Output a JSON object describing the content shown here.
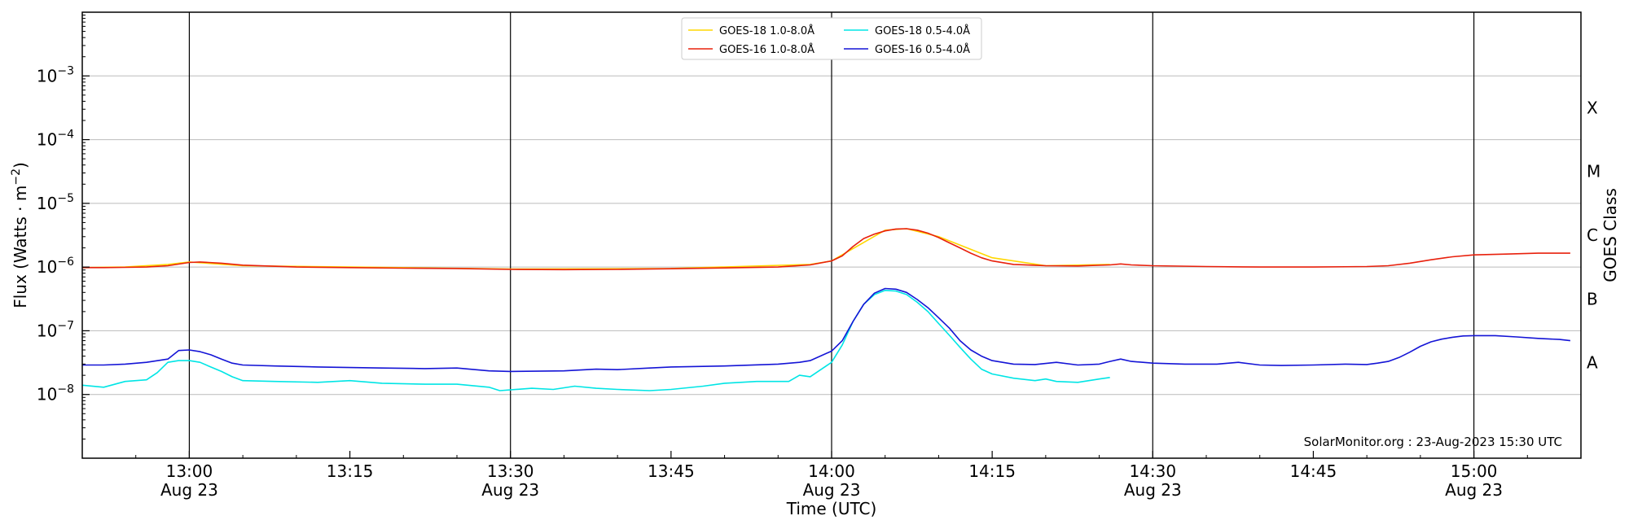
{
  "chart_data": {
    "type": "line",
    "title": "",
    "xlabel": "Time (UTC)",
    "ylabel": "Flux (Watts · m⁻²)",
    "ylabel_base": "Flux (Watts · m",
    "ylabel_sup": "−2",
    "ylabel_end": ")",
    "right_label": "GOES Class",
    "y_scale": "log",
    "ylim": [
      1e-09,
      0.01
    ],
    "y_ticks": [
      {
        "value": 1e-08,
        "base": "10",
        "exp": "−8"
      },
      {
        "value": 1e-07,
        "base": "10",
        "exp": "−7"
      },
      {
        "value": 1e-06,
        "base": "10",
        "exp": "−6"
      },
      {
        "value": 1e-05,
        "base": "10",
        "exp": "−5"
      },
      {
        "value": 0.0001,
        "base": "10",
        "exp": "−4"
      },
      {
        "value": 0.001,
        "base": "10",
        "exp": "−3"
      }
    ],
    "xlim": [
      "12:50",
      "15:10"
    ],
    "x_ticks": [
      {
        "time": "13:00",
        "label": "13:00",
        "date": "Aug 23"
      },
      {
        "time": "13:15",
        "label": "13:15",
        "date": ""
      },
      {
        "time": "13:30",
        "label": "13:30",
        "date": "Aug 23"
      },
      {
        "time": "13:45",
        "label": "13:45",
        "date": ""
      },
      {
        "time": "14:00",
        "label": "14:00",
        "date": "Aug 23"
      },
      {
        "time": "14:15",
        "label": "14:15",
        "date": ""
      },
      {
        "time": "14:30",
        "label": "14:30",
        "date": "Aug 23"
      },
      {
        "time": "14:45",
        "label": "14:45",
        "date": ""
      },
      {
        "time": "15:00",
        "label": "15:00",
        "date": "Aug 23"
      }
    ],
    "vertical_lines": [
      "13:00",
      "13:30",
      "14:00",
      "14:30",
      "15:00"
    ],
    "goes_classes": [
      {
        "label": "A",
        "value": 3.16e-08
      },
      {
        "label": "B",
        "value": 3.16e-07
      },
      {
        "label": "C",
        "value": 3.16e-06
      },
      {
        "label": "M",
        "value": 3.16e-05
      },
      {
        "label": "X",
        "value": 0.000316
      }
    ],
    "grid": true,
    "legend_position": "top-center",
    "credit": "SolarMonitor.org : 23-Aug-2023 15:30 UTC",
    "series": [
      {
        "name": "GOES-18 1.0-8.0Å",
        "color": "#ffd700",
        "points": [
          [
            "12:50",
            9.8e-07
          ],
          [
            "12:54",
            1e-06
          ],
          [
            "12:58",
            1.1e-06
          ],
          [
            "13:00",
            1.2e-06
          ],
          [
            "13:05",
            1.05e-06
          ],
          [
            "13:15",
            1e-06
          ],
          [
            "13:30",
            9.3e-07
          ],
          [
            "13:45",
            9.5e-07
          ],
          [
            "13:58",
            1.1e-06
          ],
          [
            "14:00",
            1.25e-06
          ],
          [
            "14:05",
            3.8e-06
          ],
          [
            "14:07",
            4e-06
          ],
          [
            "14:10",
            3e-06
          ],
          [
            "14:15",
            1.4e-06
          ],
          [
            "14:20",
            1.05e-06
          ],
          [
            "14:26",
            1.1e-06
          ]
        ]
      },
      {
        "name": "GOES-16 1.0-8.0Å",
        "color": "#e8200c",
        "points": [
          [
            "12:50",
            9.8e-07
          ],
          [
            "12:52",
            9.8e-07
          ],
          [
            "12:54",
            9.9e-07
          ],
          [
            "12:56",
            1e-06
          ],
          [
            "12:58",
            1.05e-06
          ],
          [
            "13:00",
            1.18e-06
          ],
          [
            "13:01",
            1.2e-06
          ],
          [
            "13:03",
            1.15e-06
          ],
          [
            "13:05",
            1.07e-06
          ],
          [
            "13:10",
            1e-06
          ],
          [
            "13:15",
            9.8e-07
          ],
          [
            "13:20",
            9.6e-07
          ],
          [
            "13:25",
            9.5e-07
          ],
          [
            "13:30",
            9.2e-07
          ],
          [
            "13:35",
            9.1e-07
          ],
          [
            "13:40",
            9.2e-07
          ],
          [
            "13:45",
            9.4e-07
          ],
          [
            "13:50",
            9.7e-07
          ],
          [
            "13:55",
            1e-06
          ],
          [
            "13:58",
            1.08e-06
          ],
          [
            "14:00",
            1.25e-06
          ],
          [
            "14:01",
            1.5e-06
          ],
          [
            "14:02",
            2.1e-06
          ],
          [
            "14:03",
            2.8e-06
          ],
          [
            "14:04",
            3.3e-06
          ],
          [
            "14:05",
            3.7e-06
          ],
          [
            "14:06",
            3.95e-06
          ],
          [
            "14:07",
            4e-06
          ],
          [
            "14:08",
            3.8e-06
          ],
          [
            "14:09",
            3.4e-06
          ],
          [
            "14:10",
            2.9e-06
          ],
          [
            "14:11",
            2.4e-06
          ],
          [
            "14:12",
            2e-06
          ],
          [
            "14:13",
            1.65e-06
          ],
          [
            "14:14",
            1.4e-06
          ],
          [
            "14:15",
            1.25e-06
          ],
          [
            "14:17",
            1.1e-06
          ],
          [
            "14:20",
            1.05e-06
          ],
          [
            "14:23",
            1.04e-06
          ],
          [
            "14:26",
            1.08e-06
          ],
          [
            "14:27",
            1.12e-06
          ],
          [
            "14:28",
            1.08e-06
          ],
          [
            "14:30",
            1.05e-06
          ],
          [
            "14:35",
            1.02e-06
          ],
          [
            "14:40",
            1e-06
          ],
          [
            "14:45",
            1e-06
          ],
          [
            "14:50",
            1.02e-06
          ],
          [
            "14:52",
            1.05e-06
          ],
          [
            "14:54",
            1.15e-06
          ],
          [
            "14:56",
            1.3e-06
          ],
          [
            "14:58",
            1.45e-06
          ],
          [
            "15:00",
            1.55e-06
          ],
          [
            "15:03",
            1.6e-06
          ],
          [
            "15:06",
            1.65e-06
          ],
          [
            "15:09",
            1.65e-06
          ]
        ]
      },
      {
        "name": "GOES-18 0.5-4.0Å",
        "color": "#00e5e5",
        "points": [
          [
            "12:50",
            1.4e-08
          ],
          [
            "12:52",
            1.3e-08
          ],
          [
            "12:54",
            1.6e-08
          ],
          [
            "12:56",
            1.7e-08
          ],
          [
            "12:57",
            2.2e-08
          ],
          [
            "12:58",
            3.2e-08
          ],
          [
            "12:59",
            3.4e-08
          ],
          [
            "13:00",
            3.4e-08
          ],
          [
            "13:01",
            3.2e-08
          ],
          [
            "13:02",
            2.7e-08
          ],
          [
            "13:03",
            2.3e-08
          ],
          [
            "13:04",
            1.9e-08
          ],
          [
            "13:05",
            1.65e-08
          ],
          [
            "13:08",
            1.6e-08
          ],
          [
            "13:12",
            1.55e-08
          ],
          [
            "13:15",
            1.65e-08
          ],
          [
            "13:18",
            1.5e-08
          ],
          [
            "13:22",
            1.45e-08
          ],
          [
            "13:25",
            1.45e-08
          ],
          [
            "13:28",
            1.3e-08
          ],
          [
            "13:29",
            1.15e-08
          ],
          [
            "13:32",
            1.25e-08
          ],
          [
            "13:34",
            1.2e-08
          ],
          [
            "13:36",
            1.35e-08
          ],
          [
            "13:38",
            1.25e-08
          ],
          [
            "13:40",
            1.2e-08
          ],
          [
            "13:43",
            1.15e-08
          ],
          [
            "13:45",
            1.2e-08
          ],
          [
            "13:48",
            1.35e-08
          ],
          [
            "13:50",
            1.5e-08
          ],
          [
            "13:53",
            1.6e-08
          ],
          [
            "13:56",
            1.6e-08
          ],
          [
            "13:57",
            2e-08
          ],
          [
            "13:58",
            1.9e-08
          ],
          [
            "14:00",
            3.2e-08
          ],
          [
            "14:01",
            6e-08
          ],
          [
            "14:02",
            1.4e-07
          ],
          [
            "14:03",
            2.6e-07
          ],
          [
            "14:04",
            3.7e-07
          ],
          [
            "14:05",
            4.3e-07
          ],
          [
            "14:06",
            4.2e-07
          ],
          [
            "14:07",
            3.7e-07
          ],
          [
            "14:08",
            2.8e-07
          ],
          [
            "14:09",
            2e-07
          ],
          [
            "14:10",
            1.3e-07
          ],
          [
            "14:11",
            8.5e-08
          ],
          [
            "14:12",
            5.5e-08
          ],
          [
            "14:13",
            3.6e-08
          ],
          [
            "14:14",
            2.5e-08
          ],
          [
            "14:15",
            2.1e-08
          ],
          [
            "14:17",
            1.8e-08
          ],
          [
            "14:19",
            1.65e-08
          ],
          [
            "14:20",
            1.75e-08
          ],
          [
            "14:21",
            1.6e-08
          ],
          [
            "14:23",
            1.55e-08
          ],
          [
            "14:25",
            1.75e-08
          ],
          [
            "14:26",
            1.85e-08
          ]
        ]
      },
      {
        "name": "GOES-16 0.5-4.0Å",
        "color": "#1414d6",
        "points": [
          [
            "12:50",
            2.9e-08
          ],
          [
            "12:52",
            2.9e-08
          ],
          [
            "12:54",
            3e-08
          ],
          [
            "12:56",
            3.2e-08
          ],
          [
            "12:58",
            3.6e-08
          ],
          [
            "12:59",
            4.9e-08
          ],
          [
            "13:00",
            5e-08
          ],
          [
            "13:01",
            4.7e-08
          ],
          [
            "13:02",
            4.2e-08
          ],
          [
            "13:03",
            3.6e-08
          ],
          [
            "13:04",
            3.1e-08
          ],
          [
            "13:05",
            2.9e-08
          ],
          [
            "13:08",
            2.8e-08
          ],
          [
            "13:12",
            2.7e-08
          ],
          [
            "13:15",
            2.65e-08
          ],
          [
            "13:18",
            2.6e-08
          ],
          [
            "13:22",
            2.55e-08
          ],
          [
            "13:25",
            2.6e-08
          ],
          [
            "13:28",
            2.35e-08
          ],
          [
            "13:30",
            2.3e-08
          ],
          [
            "13:35",
            2.35e-08
          ],
          [
            "13:38",
            2.5e-08
          ],
          [
            "13:40",
            2.45e-08
          ],
          [
            "13:43",
            2.6e-08
          ],
          [
            "13:45",
            2.7e-08
          ],
          [
            "13:50",
            2.8e-08
          ],
          [
            "13:55",
            3e-08
          ],
          [
            "13:57",
            3.2e-08
          ],
          [
            "13:58",
            3.4e-08
          ],
          [
            "14:00",
            4.8e-08
          ],
          [
            "14:01",
            7e-08
          ],
          [
            "14:02",
            1.4e-07
          ],
          [
            "14:03",
            2.6e-07
          ],
          [
            "14:04",
            3.9e-07
          ],
          [
            "14:05",
            4.6e-07
          ],
          [
            "14:06",
            4.5e-07
          ],
          [
            "14:07",
            4e-07
          ],
          [
            "14:08",
            3.1e-07
          ],
          [
            "14:09",
            2.3e-07
          ],
          [
            "14:10",
            1.6e-07
          ],
          [
            "14:11",
            1.1e-07
          ],
          [
            "14:12",
            7e-08
          ],
          [
            "14:13",
            5e-08
          ],
          [
            "14:14",
            4e-08
          ],
          [
            "14:15",
            3.4e-08
          ],
          [
            "14:17",
            3e-08
          ],
          [
            "14:19",
            2.95e-08
          ],
          [
            "14:21",
            3.2e-08
          ],
          [
            "14:23",
            2.9e-08
          ],
          [
            "14:25",
            3e-08
          ],
          [
            "14:26",
            3.3e-08
          ],
          [
            "14:27",
            3.6e-08
          ],
          [
            "14:28",
            3.3e-08
          ],
          [
            "14:30",
            3.1e-08
          ],
          [
            "14:33",
            3e-08
          ],
          [
            "14:36",
            3e-08
          ],
          [
            "14:38",
            3.2e-08
          ],
          [
            "14:40",
            2.9e-08
          ],
          [
            "14:42",
            2.85e-08
          ],
          [
            "14:45",
            2.9e-08
          ],
          [
            "14:48",
            3e-08
          ],
          [
            "14:50",
            2.95e-08
          ],
          [
            "14:51",
            3.1e-08
          ],
          [
            "14:52",
            3.3e-08
          ],
          [
            "14:53",
            3.8e-08
          ],
          [
            "14:54",
            4.6e-08
          ],
          [
            "14:55",
            5.7e-08
          ],
          [
            "14:56",
            6.7e-08
          ],
          [
            "14:57",
            7.4e-08
          ],
          [
            "14:58",
            7.9e-08
          ],
          [
            "14:59",
            8.3e-08
          ],
          [
            "15:00",
            8.4e-08
          ],
          [
            "15:02",
            8.4e-08
          ],
          [
            "15:04",
            8e-08
          ],
          [
            "15:06",
            7.6e-08
          ],
          [
            "15:08",
            7.3e-08
          ],
          [
            "15:09",
            7e-08
          ]
        ]
      }
    ]
  }
}
